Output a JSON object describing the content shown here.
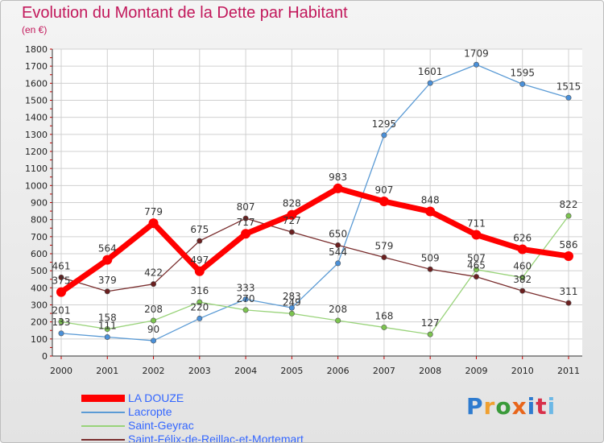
{
  "header": {
    "title": "Evolution du Montant de la Dette par Habitant",
    "subtitle": "(en €)"
  },
  "brand": {
    "text": "Proxiti",
    "colors": [
      "#2e7bcf",
      "#f0a030",
      "#3a9a3a",
      "#e8651a",
      "#2e7bcf",
      "#d8304a",
      "#6cb8e6"
    ]
  },
  "chart_data": {
    "type": "line",
    "x": [
      "2000",
      "2001",
      "2002",
      "2003",
      "2004",
      "2005",
      "2006",
      "2007",
      "2008",
      "2009",
      "2010",
      "2011"
    ],
    "y_ticks": [
      "0",
      "100",
      "200",
      "300",
      "400",
      "500",
      "600",
      "700",
      "800",
      "900",
      "1000",
      "1100",
      "1200",
      "1300",
      "1400",
      "1500",
      "1600",
      "1700",
      "1800"
    ],
    "ylim": [
      0,
      1800
    ],
    "grid": true,
    "legend_position": "bottom-left",
    "series": [
      {
        "name": "Lacropte",
        "color": "#5b9bd5",
        "marker": "#4a90d9",
        "width": 1.3,
        "values": [
          133,
          111,
          90,
          220,
          333,
          283,
          544,
          1295,
          1601,
          1709,
          1595,
          1515
        ],
        "labels": [
          "133",
          "111",
          "90",
          "220",
          "333",
          "283",
          "544",
          "1295",
          "1601",
          "1709",
          "1595",
          "1515"
        ]
      },
      {
        "name": "Saint-Geyrac",
        "color": "#99d37a",
        "marker": "#7cc44f",
        "width": 1.3,
        "values": [
          201,
          158,
          208,
          316,
          270,
          249,
          208,
          168,
          127,
          507,
          460,
          822
        ],
        "labels": [
          "201",
          "158",
          "208",
          "316",
          "270",
          "249",
          "208",
          "168",
          "127",
          "507",
          "460",
          "822"
        ]
      },
      {
        "name": "Saint-Félix-de-Reillac-et-Mortemart",
        "color": "#7a2e2e",
        "marker": "#6b1f1f",
        "width": 1.3,
        "values": [
          461,
          379,
          422,
          675,
          807,
          727,
          650,
          579,
          509,
          465,
          382,
          311
        ],
        "labels": [
          "461",
          "379",
          "422",
          "675",
          "807",
          "727",
          "650",
          "579",
          "509",
          "465",
          "382",
          "311"
        ]
      },
      {
        "name": "LA DOUZE",
        "color": "#ff0000",
        "marker": "#ff0000",
        "width": 7,
        "values": [
          375,
          564,
          779,
          497,
          717,
          828,
          983,
          907,
          848,
          711,
          626,
          586
        ],
        "labels": [
          "375",
          "564",
          "779",
          "497",
          "717",
          "828",
          "983",
          "907",
          "848",
          "711",
          "626",
          "586"
        ]
      }
    ]
  },
  "legend": [
    {
      "label": "LA DOUZE",
      "color": "#ff0000",
      "text_color": "#3366ff",
      "thickness": 9
    },
    {
      "label": "Lacropte",
      "color": "#5b9bd5",
      "text_color": "#3366ff",
      "thickness": 2
    },
    {
      "label": "Saint-Geyrac",
      "color": "#99d37a",
      "text_color": "#3366ff",
      "thickness": 2
    },
    {
      "label": "Saint-Félix-de-Reillac-et-Mortemart",
      "color": "#7a2e2e",
      "text_color": "#3366ff",
      "thickness": 2
    }
  ]
}
